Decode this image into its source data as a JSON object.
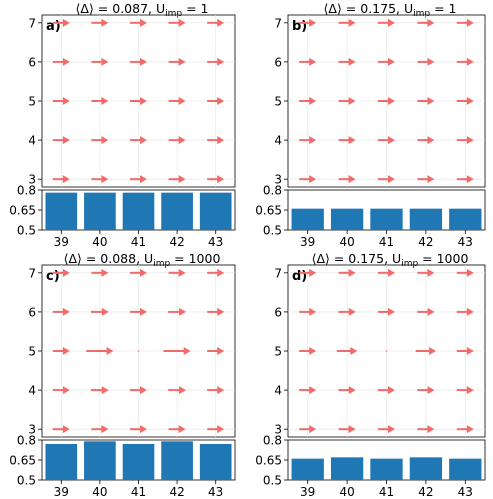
{
  "arrow_color": "#f26b6b",
  "bar_color": "#1f77b4",
  "chart_data": [
    {
      "type": "quiver",
      "panel_label": "a)",
      "title_parts": [
        "⟨Δ⟩ = 0.087,  U",
        "imp",
        " = 1"
      ],
      "x": [
        39,
        40,
        41,
        42,
        43
      ],
      "y": [
        3,
        4,
        5,
        6,
        7
      ],
      "xlim": [
        38.5,
        43.5
      ],
      "ylim": [
        2.8,
        7.2
      ],
      "arrow_length": [
        [
          1,
          1,
          1,
          1,
          1
        ],
        [
          1,
          1,
          1,
          1,
          1
        ],
        [
          1,
          1,
          1,
          1,
          1
        ],
        [
          1,
          1,
          1,
          1,
          1
        ],
        [
          1,
          1,
          1,
          1,
          1
        ]
      ],
      "arrow_direction": "right",
      "bars": {
        "categories": [
          "39",
          "40",
          "41",
          "42",
          "43"
        ],
        "values": [
          0.78,
          0.78,
          0.78,
          0.78,
          0.78
        ],
        "ylim": [
          0.5,
          0.8
        ],
        "yticks": [
          "0.8",
          "0.65",
          "0.5"
        ]
      }
    },
    {
      "type": "quiver",
      "panel_label": "b)",
      "title_parts": [
        "⟨Δ⟩ = 0.175,  U",
        "imp",
        " = 1"
      ],
      "x": [
        39,
        40,
        41,
        42,
        43
      ],
      "y": [
        3,
        4,
        5,
        6,
        7
      ],
      "xlim": [
        38.5,
        43.5
      ],
      "ylim": [
        2.8,
        7.2
      ],
      "arrow_length": [
        [
          1,
          1,
          1,
          1,
          1
        ],
        [
          1,
          1,
          1,
          1,
          1
        ],
        [
          1,
          1,
          1,
          1,
          1
        ],
        [
          1,
          1,
          1,
          1,
          1
        ],
        [
          1,
          1,
          1,
          1,
          1
        ]
      ],
      "arrow_direction": "right",
      "bars": {
        "categories": [
          "39",
          "40",
          "41",
          "42",
          "43"
        ],
        "values": [
          0.66,
          0.66,
          0.66,
          0.66,
          0.66
        ],
        "ylim": [
          0.5,
          0.8
        ],
        "yticks": [
          "0.8",
          "0.65",
          "0.5"
        ]
      }
    },
    {
      "type": "quiver",
      "panel_label": "c)",
      "title_parts": [
        "⟨Δ⟩ = 0.088,  U",
        "imp",
        " = 1000"
      ],
      "x": [
        39,
        40,
        41,
        42,
        43
      ],
      "y": [
        3,
        4,
        5,
        6,
        7
      ],
      "xlim": [
        38.5,
        43.5
      ],
      "ylim": [
        2.8,
        7.2
      ],
      "arrow_length": [
        [
          1,
          1,
          1,
          1,
          1
        ],
        [
          1,
          1.05,
          1,
          1.05,
          1
        ],
        [
          1,
          1.6,
          0,
          1.6,
          1
        ],
        [
          1,
          1.05,
          1,
          1.05,
          1
        ],
        [
          1,
          1,
          1,
          1,
          1
        ]
      ],
      "arrow_direction": "right",
      "bars": {
        "categories": [
          "39",
          "40",
          "41",
          "42",
          "43"
        ],
        "values": [
          0.77,
          0.79,
          0.77,
          0.79,
          0.77
        ],
        "ylim": [
          0.5,
          0.8
        ],
        "yticks": [
          "0.8",
          "0.65",
          "0.5"
        ]
      }
    },
    {
      "type": "quiver",
      "panel_label": "d)",
      "title_parts": [
        "⟨Δ⟩ = 0.175,  U",
        "imp",
        " = 1000"
      ],
      "x": [
        39,
        40,
        41,
        42,
        43
      ],
      "y": [
        3,
        4,
        5,
        6,
        7
      ],
      "xlim": [
        38.5,
        43.5
      ],
      "ylim": [
        2.8,
        7.2
      ],
      "arrow_length": [
        [
          1,
          1,
          1,
          1,
          1
        ],
        [
          1,
          1.02,
          1,
          1.02,
          1
        ],
        [
          1,
          1.2,
          0,
          1.2,
          1
        ],
        [
          1,
          1.02,
          1,
          1.02,
          1
        ],
        [
          1,
          1,
          1,
          1,
          1
        ]
      ],
      "arrow_direction": "right",
      "bars": {
        "categories": [
          "39",
          "40",
          "41",
          "42",
          "43"
        ],
        "values": [
          0.66,
          0.67,
          0.66,
          0.67,
          0.66
        ],
        "ylim": [
          0.5,
          0.8
        ],
        "yticks": [
          "0.8",
          "0.65",
          "0.5"
        ]
      }
    }
  ]
}
